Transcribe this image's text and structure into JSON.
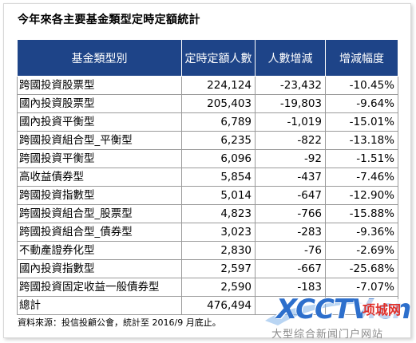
{
  "title": "今年來各主要基金類型定時定額統計",
  "table": {
    "headers": [
      "基金類型別",
      "定時定額人數",
      "人數增減",
      "增減幅度"
    ],
    "rows": [
      [
        "跨國投資股票型",
        "224,124",
        "-23,432",
        "-10.45%"
      ],
      [
        "國內投資股票型",
        "205,403",
        "-19,803",
        "-9.64%"
      ],
      [
        "國內投資平衡型",
        "6,789",
        "-1,019",
        "-15.01%"
      ],
      [
        "跨國投資組合型_平衡型",
        "6,235",
        "-822",
        "-13.18%"
      ],
      [
        "跨國投資平衡型",
        "6,096",
        "-92",
        "-1.51%"
      ],
      [
        "高收益債券型",
        "5,854",
        "-437",
        "-7.46%"
      ],
      [
        "跨國投資指數型",
        "5,014",
        "-647",
        "-12.90%"
      ],
      [
        "跨國投資組合型_股票型",
        "4,823",
        "-766",
        "-15.88%"
      ],
      [
        "跨國投資組合型_債券型",
        "3,023",
        "-283",
        "-9.36%"
      ],
      [
        "不動產證券化型",
        "2,830",
        "-76",
        "-2.69%"
      ],
      [
        "國內投資指數型",
        "2,597",
        "-667",
        "-25.68%"
      ],
      [
        "跨國投資固定收益一般債券型",
        "2,590",
        "-183",
        "-7.07%"
      ],
      [
        "總計",
        "476,494",
        "",
        ""
      ]
    ]
  },
  "source": "資料來源：投信投顧公會，統計至 2016/9 月底止。",
  "watermark": {
    "logo": "XCCTV.cn",
    "site": "项城网",
    "subtitle": "大型综合新闻门户网站",
    "colors": {
      "logo": "#2d6fcc",
      "site": "#e0302a"
    }
  },
  "colors": {
    "header_bg": "#1e4488",
    "header_text": "#ffffff",
    "border": "#9a9a9a"
  }
}
